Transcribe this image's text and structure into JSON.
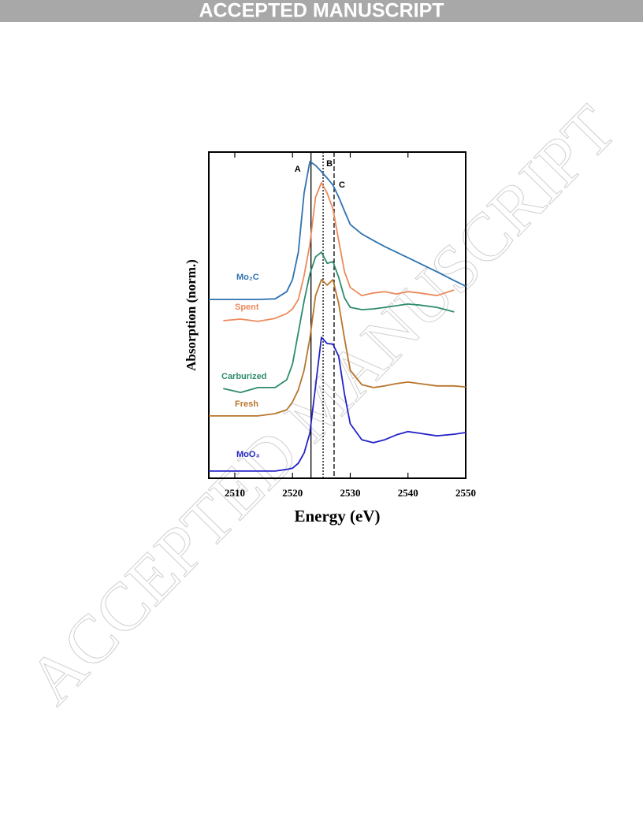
{
  "header": {
    "banner": "ACCEPTED MANUSCRIPT"
  },
  "watermark": "ACCEPTED MANUSCRIPT",
  "chart_data": {
    "type": "line",
    "x_label": "Energy (eV)",
    "y_label": "Absorption (norm.)",
    "xlim": [
      2505.5,
      2550
    ],
    "ylim": [
      0,
      10
    ],
    "xticks": [
      2510,
      2520,
      2530,
      2540,
      2550
    ],
    "x": [
      2505.5,
      2508,
      2511,
      2514,
      2517,
      2519,
      2520,
      2521,
      2522,
      2523,
      2524,
      2525,
      2526,
      2527,
      2528,
      2529,
      2530,
      2532,
      2534,
      2536,
      2538,
      2540,
      2542,
      2545,
      2548,
      2550
    ],
    "series": [
      {
        "name": "Mo₂C",
        "color": "#2f72b0",
        "values": [
          5.48,
          5.48,
          5.48,
          5.48,
          5.5,
          5.72,
          6.09,
          6.93,
          8.74,
          9.71,
          9.59,
          9.4,
          9.2,
          8.99,
          8.62,
          8.19,
          7.78,
          7.49,
          7.29,
          7.1,
          6.93,
          6.76,
          6.59,
          6.33,
          6.06,
          5.89
        ]
      },
      {
        "name": "Spent",
        "color": "#ec8a5c",
        "values": [
          null,
          4.83,
          4.88,
          4.81,
          4.9,
          5.05,
          5.19,
          5.48,
          6.21,
          7.17,
          8.62,
          9.06,
          8.74,
          8.26,
          7.29,
          6.33,
          5.85,
          5.6,
          5.68,
          5.72,
          5.65,
          5.72,
          5.68,
          5.6,
          5.77,
          null
        ]
      },
      {
        "name": "Carburized",
        "color": "#2e8b6e",
        "values": [
          null,
          2.75,
          2.63,
          2.78,
          2.78,
          3.02,
          3.5,
          4.47,
          5.43,
          6.26,
          6.79,
          6.93,
          6.59,
          6.64,
          6.16,
          5.53,
          5.24,
          5.17,
          5.19,
          5.24,
          5.29,
          5.34,
          5.31,
          5.24,
          5.1,
          null
        ]
      },
      {
        "name": "Fresh",
        "color": "#b8762c",
        "values": [
          1.91,
          1.91,
          1.91,
          1.91,
          1.98,
          2.1,
          2.34,
          2.71,
          3.31,
          4.28,
          5.6,
          6.09,
          5.92,
          6.09,
          5.36,
          4.28,
          3.31,
          2.87,
          2.78,
          2.83,
          2.9,
          2.95,
          2.9,
          2.83,
          2.83,
          2.8
        ]
      },
      {
        "name": "MoO₃",
        "color": "#2323c8",
        "values": [
          0.22,
          0.22,
          0.22,
          0.22,
          0.22,
          0.27,
          0.31,
          0.46,
          0.77,
          1.38,
          2.83,
          4.32,
          4.13,
          4.11,
          3.74,
          2.58,
          1.67,
          1.18,
          1.09,
          1.18,
          1.33,
          1.43,
          1.38,
          1.3,
          1.35,
          1.4
        ]
      }
    ],
    "reference_lines": [
      {
        "x": 2523.2,
        "label": "A",
        "style": "solid"
      },
      {
        "x": 2525.3,
        "label": "B",
        "style": "dotted"
      },
      {
        "x": 2527.2,
        "label": "C",
        "style": "dashed"
      }
    ]
  }
}
